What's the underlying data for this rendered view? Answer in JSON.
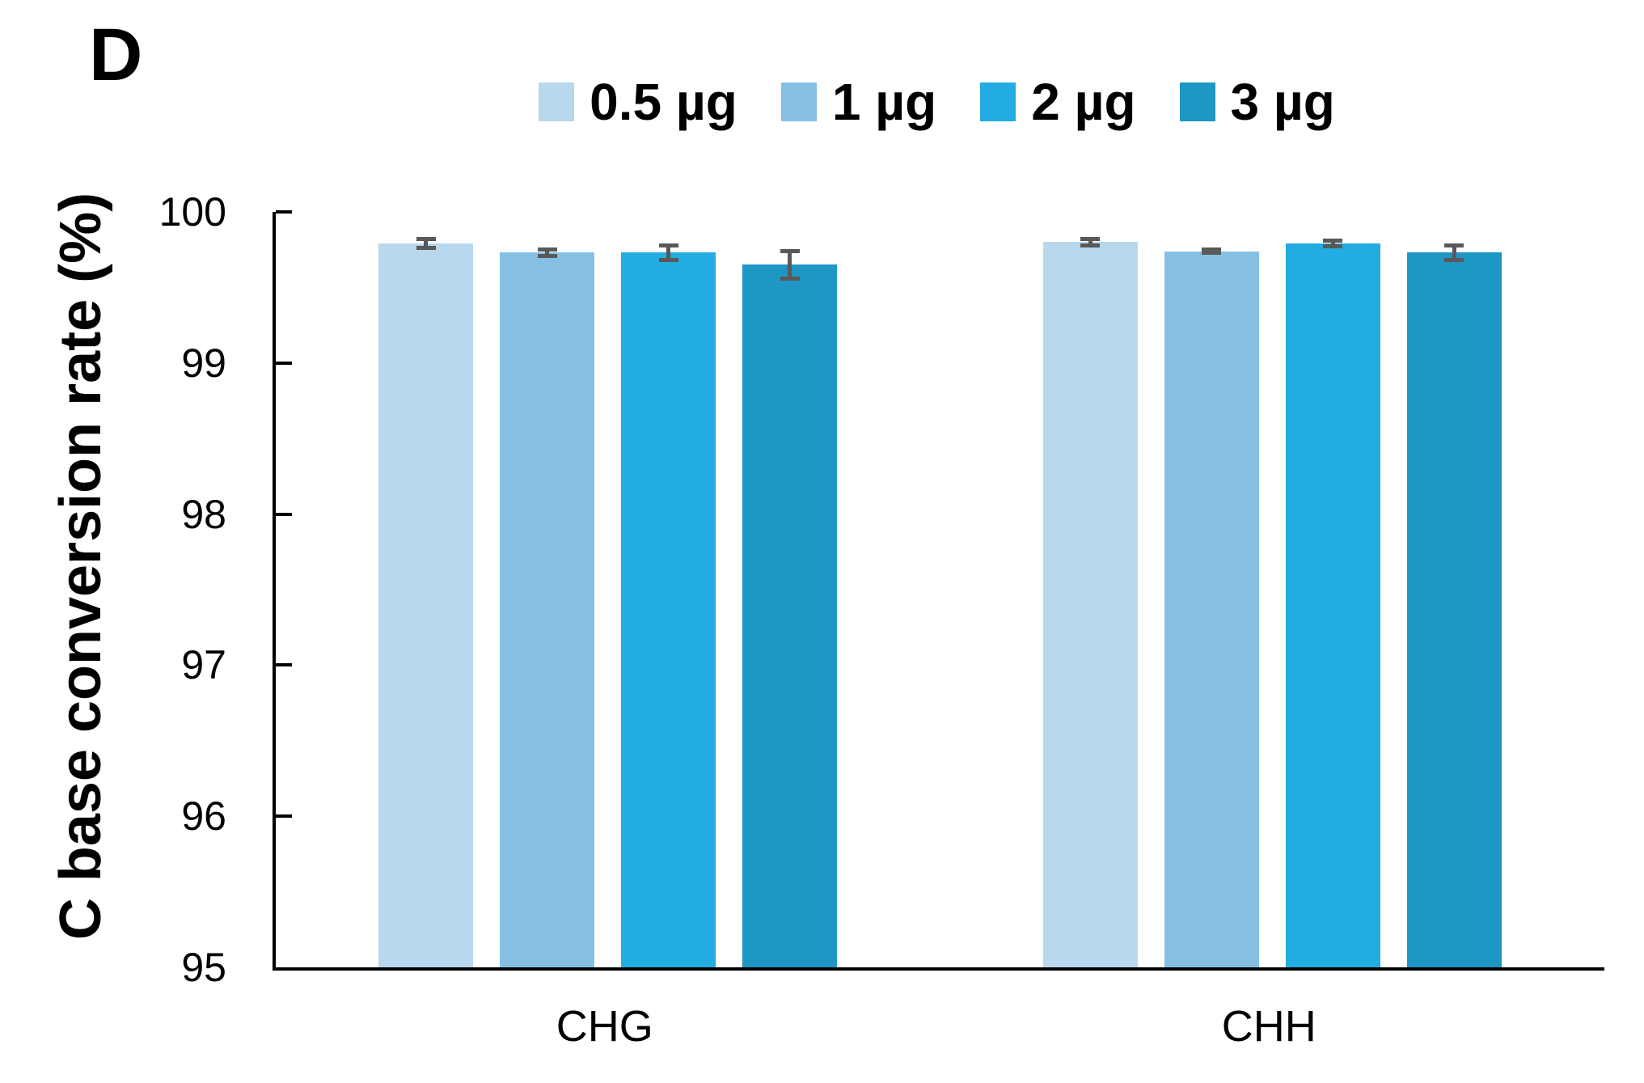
{
  "panel_label": "D",
  "chart_data": {
    "type": "bar",
    "title": "",
    "xlabel": "",
    "ylabel": "C base conversion rate (%)",
    "ylim": [
      95,
      100
    ],
    "yticks": [
      95,
      96,
      97,
      98,
      99,
      100
    ],
    "categories": [
      "CHG",
      "CHH"
    ],
    "legend_position": "top",
    "grid": false,
    "error_bars": true,
    "series": [
      {
        "name": "0.5 µg",
        "color": "#B9D7ED",
        "values": [
          99.79,
          99.8
        ],
        "errors": [
          0.03,
          0.02
        ]
      },
      {
        "name": "1 µg",
        "color": "#85C0E4",
        "values": [
          99.73,
          99.74
        ],
        "errors": [
          0.02,
          0.01
        ]
      },
      {
        "name": "2 µg",
        "color": "#22ACE1",
        "values": [
          99.73,
          99.79
        ],
        "errors": [
          0.05,
          0.02
        ]
      },
      {
        "name": "3 µg",
        "color": "#1E97C5",
        "values": [
          99.65,
          99.73
        ],
        "errors": [
          0.09,
          0.05
        ]
      }
    ],
    "error_bar_color": "#595959",
    "axis_color": "#000000"
  }
}
